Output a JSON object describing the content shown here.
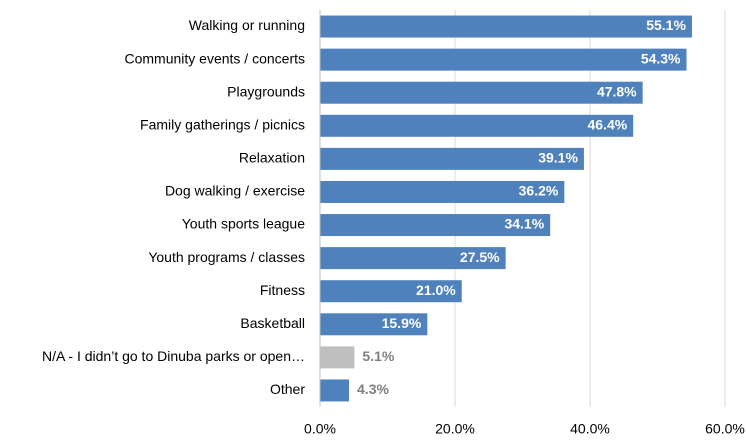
{
  "chart_data": {
    "type": "bar",
    "orientation": "horizontal",
    "categories": [
      "Walking or running",
      "Community events / concerts",
      "Playgrounds",
      "Family gatherings / picnics",
      "Relaxation",
      "Dog walking / exercise",
      "Youth sports league",
      "Youth programs / classes",
      "Fitness",
      "Basketball",
      "N/A - I didn’t go to Dinuba parks or open…",
      "Other"
    ],
    "values": [
      55.1,
      54.3,
      47.8,
      46.4,
      39.1,
      36.2,
      34.1,
      27.5,
      21.0,
      15.9,
      5.1,
      4.3
    ],
    "value_labels": [
      "55.1%",
      "54.3%",
      "47.8%",
      "46.4%",
      "39.1%",
      "36.2%",
      "34.1%",
      "27.5%",
      "21.0%",
      "15.9%",
      "5.1%",
      "4.3%"
    ],
    "colors": [
      "#4f81bd",
      "#4f81bd",
      "#4f81bd",
      "#4f81bd",
      "#4f81bd",
      "#4f81bd",
      "#4f81bd",
      "#4f81bd",
      "#4f81bd",
      "#4f81bd",
      "#bfbfbf",
      "#4f81bd"
    ],
    "xlim": [
      0,
      60
    ],
    "xticks": [
      {
        "value": 0,
        "label": "0.0%"
      },
      {
        "value": 20,
        "label": "20.0%"
      },
      {
        "value": 40,
        "label": "40.0%"
      },
      {
        "value": 60,
        "label": "60.0%"
      }
    ],
    "grid": true
  }
}
